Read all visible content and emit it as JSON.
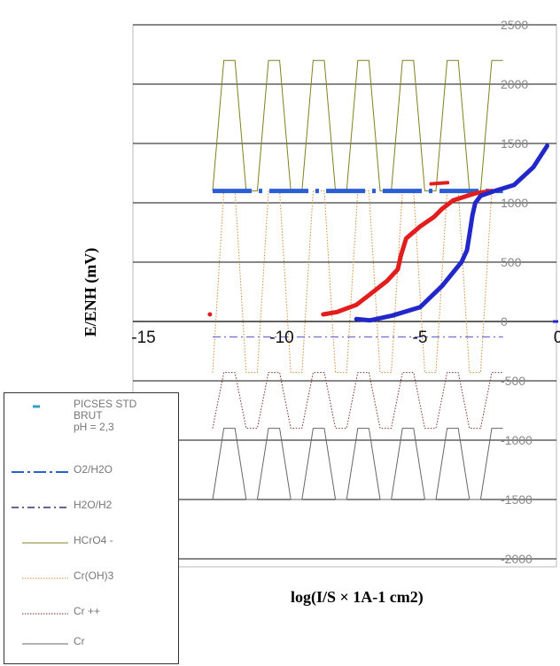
{
  "chart_data": {
    "type": "line",
    "ylabel": "E/ENH (mV)",
    "xlabel": "log(I/S × 1A-1 cm2)",
    "xlim": [
      -15,
      0
    ],
    "ylim": [
      -2000,
      2500
    ],
    "x_ticks": [
      "-15",
      "-10",
      "-5",
      "0"
    ],
    "y_ticks": [
      "2500",
      "2000",
      "1500",
      "1000",
      "500",
      "0",
      "-500",
      "-1000",
      "-1500",
      "-2000"
    ],
    "grid": "horizontal",
    "legend_position": "bottom-left",
    "series": [
      {
        "name": "PICSES STD BRUT pH = 2,3",
        "color": "#e21d1d",
        "x": [
          -8.5,
          -8.0,
          -7.3,
          -6.8,
          -6.2,
          -5.8,
          -5.7,
          -5.5,
          -5.0,
          -4.5,
          -4.2,
          -3.8,
          -3.0,
          -2.4
        ],
        "y": [
          60,
          80,
          140,
          230,
          340,
          440,
          550,
          700,
          800,
          880,
          950,
          1020,
          1080,
          1100
        ]
      },
      {
        "name": "",
        "color": "#2127c8",
        "x": [
          -7.3,
          -6.8,
          -6.0,
          -5.0,
          -4.2,
          -3.5,
          -3.3,
          -3.2,
          -3.1,
          -3.0,
          -2.8,
          -2.3,
          -1.6,
          -0.9,
          -0.4
        ],
        "y": [
          20,
          10,
          50,
          120,
          300,
          500,
          600,
          750,
          900,
          1000,
          1060,
          1100,
          1150,
          1300,
          1480
        ]
      },
      {
        "name": "O2/H2O",
        "color": "#2a5fd4",
        "y": 1100,
        "x_range": [
          -12.5,
          -2.0
        ]
      },
      {
        "name": "H2O/H2",
        "color": "#5050cc",
        "y": -130,
        "x_range": [
          -12.5,
          -2.0
        ]
      },
      {
        "name": "HCrO4 -",
        "color": "#808020",
        "y_range": [
          1100,
          2200
        ],
        "x_range": [
          -12.5,
          -2.0
        ]
      },
      {
        "name": "Cr(OH)3",
        "color": "#d08b3c",
        "y_range": [
          -430,
          1100
        ],
        "x_range": [
          -12.5,
          -2.0
        ]
      },
      {
        "name": "Cr ++",
        "color": "#7a2a2a",
        "y_range": [
          -900,
          -430
        ],
        "x_range": [
          -12.5,
          -2.0
        ]
      },
      {
        "name": "Cr",
        "color": "#666666",
        "y_range": [
          -1500,
          -900
        ],
        "x_range": [
          -12.5,
          -2.0
        ]
      }
    ],
    "legend": [
      {
        "label": "PICSES STD",
        "sub1": "BRUT",
        "sub2": "pH = 2,3",
        "style": "marker",
        "color": "#30a0c8"
      },
      {
        "label": "O2/H2O",
        "style": "dashdot",
        "color": "#2a5fd4"
      },
      {
        "label": "H2O/H2",
        "style": "dashdot",
        "color": "#333366"
      },
      {
        "label": "HCrO4 -",
        "style": "solid",
        "color": "#808020"
      },
      {
        "label": "Cr(OH)3",
        "style": "dotted",
        "color": "#d08b3c"
      },
      {
        "label": "Cr ++",
        "style": "dotted",
        "color": "#7a2a2a"
      },
      {
        "label": "Cr",
        "style": "solid",
        "color": "#666666"
      }
    ]
  }
}
